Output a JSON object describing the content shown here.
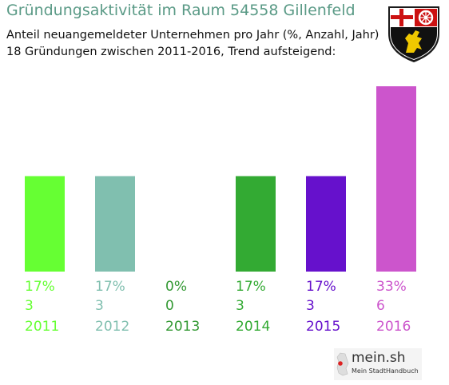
{
  "header": {
    "title": "Gründungsaktivität im Raum 54558 Gillenfeld",
    "subtitle_line1": "Anteil neuangemeldeter Unternehmen pro Jahr (%, Anzahl, Jahr)",
    "subtitle_line2": "18 Gründungen zwischen 2011-2016, Trend aufsteigend:"
  },
  "coat_of_arms": {
    "icon": "rhineland-palatinate-coat-of-arms-icon"
  },
  "chart_data": {
    "type": "bar",
    "title": "Gründungsaktivität im Raum 54558 Gillenfeld",
    "categories": [
      "2011",
      "2012",
      "2013",
      "2014",
      "2015",
      "2016"
    ],
    "values": [
      17,
      17,
      0,
      17,
      17,
      33
    ],
    "percent_labels": [
      "17%",
      "17%",
      "0%",
      "17%",
      "17%",
      "33%"
    ],
    "counts": [
      "3",
      "3",
      "0",
      "3",
      "3",
      "6"
    ],
    "colors": [
      "#66ff33",
      "#80bfaf",
      "#339933",
      "#33aa33",
      "#6611cc",
      "#cc55cc"
    ],
    "ylim": [
      0,
      33
    ],
    "grid": false,
    "legend": "none"
  },
  "branding": {
    "logo_text": "mein.sh",
    "logo_subtext": "Mein StadtHandbuch"
  }
}
